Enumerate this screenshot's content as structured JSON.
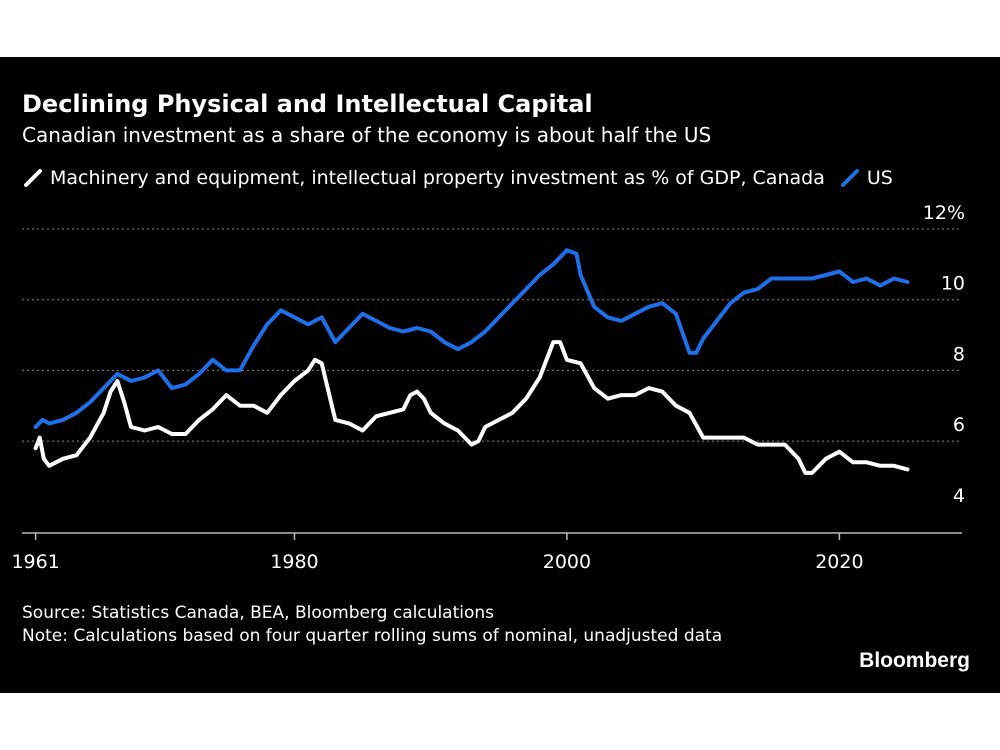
{
  "header": {
    "title": "Declining Physical and Intellectual Capital",
    "subtitle": "Canadian investment as a share of the economy is about half the US"
  },
  "footer": {
    "source": "Source: Statistics Canada, BEA, Bloomberg calculations",
    "note": "Note: Calculations based on four quarter rolling sums of nominal, unadjusted data"
  },
  "brand": "Bloomberg",
  "colors": {
    "canada": "#ffffff",
    "us": "#1e6fe8",
    "background": "#000000",
    "grid": "#888888"
  },
  "chart_data": {
    "type": "line",
    "legend_position": "top-left",
    "grid": true,
    "x_ticks": [
      "1961",
      "1980",
      "2000",
      "2020"
    ],
    "x_tick_values": [
      1961,
      1980,
      2000,
      2020
    ],
    "y_ticks": [
      "12%",
      "10",
      "8",
      "6",
      "4"
    ],
    "y_tick_values": [
      12,
      10,
      8,
      6,
      4
    ],
    "xlim": [
      1960,
      2029
    ],
    "ylim": [
      3.4,
      12
    ],
    "series": [
      {
        "name": "Machinery and equipment, intellectual property investment as % of GDP, Canada",
        "color": "#ffffff",
        "x": [
          1961,
          1961.3,
          1961.6,
          1962,
          1963,
          1964,
          1965,
          1966,
          1966.5,
          1967,
          1967.5,
          1968,
          1969,
          1970,
          1971,
          1972,
          1973,
          1974,
          1975,
          1976,
          1977,
          1978,
          1979,
          1980,
          1981,
          1981.5,
          1982,
          1982.5,
          1983,
          1984,
          1985,
          1986,
          1987,
          1988,
          1988.5,
          1989,
          1989.5,
          1990,
          1991,
          1992,
          1993,
          1993.5,
          1994,
          1995,
          1996,
          1997,
          1998,
          1999,
          1999.5,
          2000,
          2001,
          2002,
          2003,
          2004,
          2005,
          2006,
          2007,
          2008,
          2009,
          2010,
          2011,
          2012,
          2013,
          2014,
          2015,
          2016,
          2017,
          2017.5,
          2018,
          2019,
          2020,
          2021,
          2022,
          2023,
          2024,
          2025
        ],
        "y": [
          5.8,
          6.1,
          5.5,
          5.3,
          5.5,
          5.6,
          6.1,
          6.8,
          7.4,
          7.7,
          7.1,
          6.4,
          6.3,
          6.4,
          6.2,
          6.2,
          6.6,
          6.9,
          7.3,
          7.0,
          7.0,
          6.8,
          7.3,
          7.7,
          8.0,
          8.3,
          8.2,
          7.4,
          6.6,
          6.5,
          6.3,
          6.7,
          6.8,
          6.9,
          7.3,
          7.4,
          7.2,
          6.8,
          6.5,
          6.3,
          5.9,
          6.0,
          6.4,
          6.6,
          6.8,
          7.2,
          7.8,
          8.8,
          8.8,
          8.3,
          8.2,
          7.5,
          7.2,
          7.3,
          7.3,
          7.5,
          7.4,
          7.0,
          6.8,
          6.1,
          6.1,
          6.1,
          6.1,
          5.9,
          5.9,
          5.9,
          5.5,
          5.1,
          5.1,
          5.5,
          5.7,
          5.4,
          5.4,
          5.3,
          5.3,
          5.2
        ]
      },
      {
        "name": "US",
        "color": "#1e6fe8",
        "x": [
          1961,
          1961.5,
          1962,
          1963,
          1964,
          1965,
          1966,
          1967,
          1968,
          1969,
          1970,
          1971,
          1972,
          1973,
          1974,
          1975,
          1976,
          1977,
          1978,
          1979,
          1980,
          1981,
          1982,
          1983,
          1984,
          1985,
          1986,
          1987,
          1988,
          1989,
          1990,
          1991,
          1992,
          1993,
          1994,
          1995,
          1996,
          1997,
          1998,
          1999,
          2000,
          2000.7,
          2001,
          2002,
          2003,
          2004,
          2005,
          2006,
          2007,
          2008,
          2009,
          2009.5,
          2010,
          2011,
          2012,
          2013,
          2014,
          2015,
          2016,
          2017,
          2018,
          2019,
          2020,
          2021,
          2022,
          2023,
          2024,
          2025
        ],
        "y": [
          6.4,
          6.6,
          6.5,
          6.6,
          6.8,
          7.1,
          7.5,
          7.9,
          7.7,
          7.8,
          8.0,
          7.5,
          7.6,
          7.9,
          8.3,
          8.0,
          8.0,
          8.7,
          9.3,
          9.7,
          9.5,
          9.3,
          9.5,
          8.8,
          9.2,
          9.6,
          9.4,
          9.2,
          9.1,
          9.2,
          9.1,
          8.8,
          8.6,
          8.8,
          9.1,
          9.5,
          9.9,
          10.3,
          10.7,
          11.0,
          11.4,
          11.3,
          10.7,
          9.8,
          9.5,
          9.4,
          9.6,
          9.8,
          9.9,
          9.6,
          8.5,
          8.5,
          8.9,
          9.4,
          9.9,
          10.2,
          10.3,
          10.6,
          10.6,
          10.6,
          10.6,
          10.7,
          10.8,
          10.5,
          10.6,
          10.4,
          10.6,
          10.5
        ]
      }
    ]
  }
}
